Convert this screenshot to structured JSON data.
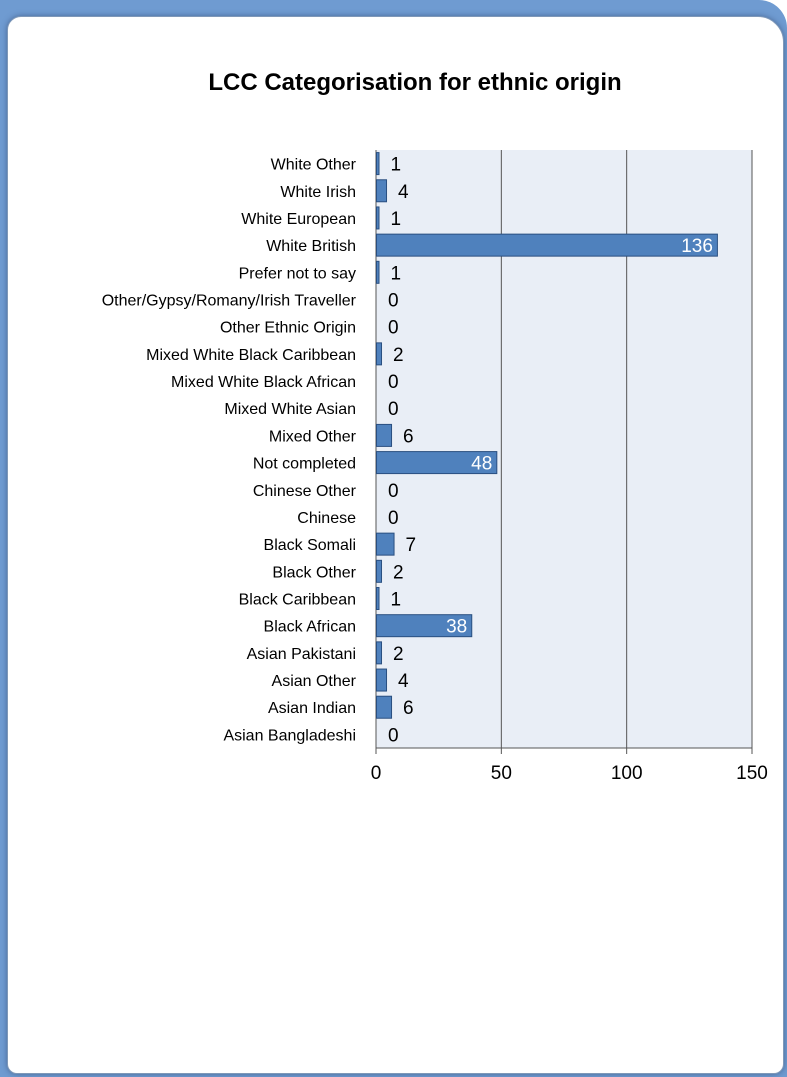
{
  "chart_data": {
    "type": "bar",
    "orientation": "horizontal",
    "title": "LCC Categorisation for ethnic origin",
    "xlabel": "",
    "ylabel": "",
    "xlim": [
      0,
      150
    ],
    "x_ticks": [
      0,
      50,
      100,
      150
    ],
    "grid": true,
    "legend": "none",
    "categories": [
      "White Other",
      "White Irish",
      "White European",
      "White British",
      "Prefer not to say",
      "Other/Gypsy/Romany/Irish Traveller",
      "Other Ethnic Origin",
      "Mixed White Black Caribbean",
      "Mixed White Black African",
      "Mixed White Asian",
      "Mixed Other",
      "Not completed",
      "Chinese Other",
      "Chinese",
      "Black Somali",
      "Black Other",
      "Black Caribbean",
      "Black African",
      "Asian Pakistani",
      "Asian Other",
      "Asian Indian",
      "Asian Bangladeshi"
    ],
    "values": [
      1,
      4,
      1,
      136,
      1,
      0,
      0,
      2,
      0,
      0,
      6,
      48,
      0,
      0,
      7,
      2,
      1,
      38,
      2,
      4,
      6,
      0
    ],
    "colors": {
      "bar_fill": "#4f81bd",
      "bar_stroke": "#2a4f80",
      "plot_bg": "#e9eef6",
      "grid": "#555555",
      "text": "#000000",
      "label_inside": "#ffffff"
    }
  }
}
